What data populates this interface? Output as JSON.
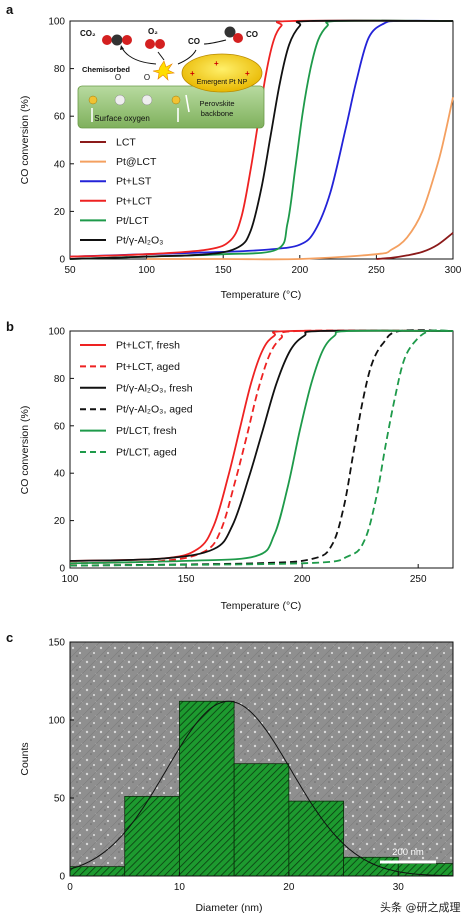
{
  "panels": {
    "a": {
      "letter": "a",
      "legend": [
        {
          "label": "LCT",
          "color": "#8b1a1a"
        },
        {
          "label": "Pt@LCT",
          "color": "#f4a060"
        },
        {
          "label": "Pt+LST",
          "color": "#2323d8"
        },
        {
          "label": "Pt+LCT",
          "color": "#ee2222"
        },
        {
          "label": "Pt/LCT",
          "color": "#1e9a4a"
        },
        {
          "label": "Pt/γ-Al₂O₃",
          "color": "#111111"
        }
      ],
      "inset": {
        "co2": "CO₂",
        "o2": "O₂",
        "co_left": "CO",
        "co_right": "CO",
        "chemisorbed": "Chemisorbed",
        "o_left": "O",
        "o_right": "O",
        "emergent": "Emergent Pt NP",
        "perovskite_line1": "Perovskite",
        "perovskite_line2": "backbone",
        "surface_oxygen": "Surface oxygen"
      }
    },
    "b": {
      "letter": "b",
      "legend": [
        {
          "label": "Pt+LCT, fresh",
          "color": "#ee2222",
          "dashed": false
        },
        {
          "label": "Pt+LCT, aged",
          "color": "#ee2222",
          "dashed": true
        },
        {
          "label": "Pt/γ-Al₂O₃, fresh",
          "color": "#111111",
          "dashed": false
        },
        {
          "label": "Pt/γ-Al₂O₃, aged",
          "color": "#111111",
          "dashed": true
        },
        {
          "label": "Pt/LCT, fresh",
          "color": "#1e9a4a",
          "dashed": false
        },
        {
          "label": "Pt/LCT, aged",
          "color": "#1e9a4a",
          "dashed": true
        }
      ]
    },
    "c": {
      "letter": "c",
      "scalebar_label": "200 nm"
    }
  },
  "watermark": "头条 @研之成理",
  "chart_data": [
    {
      "type": "line",
      "panel": "a",
      "xlabel": "Temperature (°C)",
      "ylabel": "CO conversion (%)",
      "xlim": [
        50,
        300
      ],
      "ylim": [
        0,
        100
      ],
      "xticks": [
        50,
        100,
        150,
        200,
        250,
        300
      ],
      "yticks": [
        0,
        20,
        40,
        60,
        80,
        100
      ],
      "legend_position": "left",
      "series": [
        {
          "name": "LCT",
          "color": "#8b1a1a",
          "x": [
            250,
            260,
            270,
            280,
            290,
            300
          ],
          "y": [
            0,
            0.5,
            1.5,
            3,
            6,
            11
          ]
        },
        {
          "name": "Pt@LCT",
          "color": "#f4a060",
          "x": [
            100,
            150,
            200,
            250,
            260,
            270,
            280,
            290,
            295,
            300
          ],
          "y": [
            0,
            0,
            0,
            2,
            4,
            9,
            20,
            40,
            53,
            68
          ]
        },
        {
          "name": "Pt+LST",
          "color": "#2323d8",
          "x": [
            50,
            100,
            150,
            180,
            200,
            210,
            220,
            230,
            237,
            245,
            255,
            265,
            300
          ],
          "y": [
            1,
            2,
            3,
            4,
            6,
            12,
            28,
            55,
            75,
            93,
            99,
            100,
            100
          ]
        },
        {
          "name": "Pt+LCT",
          "color": "#ee2222",
          "x": [
            50,
            100,
            140,
            155,
            162,
            168,
            173,
            178,
            183,
            188,
            195,
            300
          ],
          "y": [
            1,
            2,
            4,
            8,
            18,
            38,
            58,
            78,
            92,
            98,
            100,
            100
          ]
        },
        {
          "name": "Pt/LCT",
          "color": "#1e9a4a",
          "x": [
            50,
            100,
            150,
            185,
            192,
            197,
            202,
            207,
            212,
            218,
            225,
            300
          ],
          "y": [
            0,
            1,
            2,
            4,
            15,
            38,
            62,
            80,
            92,
            98,
            100,
            100
          ]
        },
        {
          "name": "Pt/γ-Al₂O₃",
          "color": "#111111",
          "x": [
            50,
            100,
            140,
            160,
            168,
            175,
            181,
            187,
            193,
            200,
            207,
            300
          ],
          "y": [
            0,
            1,
            2,
            5,
            12,
            30,
            52,
            74,
            90,
            98,
            100,
            100
          ]
        }
      ]
    },
    {
      "type": "line",
      "panel": "b",
      "xlabel": "Temperature (°C)",
      "ylabel": "CO conversion (%)",
      "xlim": [
        100,
        265
      ],
      "ylim": [
        0,
        100
      ],
      "xticks": [
        100,
        150,
        200,
        250
      ],
      "yticks": [
        0,
        20,
        40,
        60,
        80,
        100
      ],
      "legend_position": "left",
      "series": [
        {
          "name": "Pt+LCT, fresh",
          "color": "#ee2222",
          "dashed": false,
          "x": [
            100,
            140,
            155,
            162,
            168,
            173,
            178,
            183,
            188,
            195,
            265
          ],
          "y": [
            3,
            4,
            8,
            18,
            38,
            58,
            78,
            92,
            98,
            100,
            100
          ]
        },
        {
          "name": "Pt+LCT, aged",
          "color": "#ee2222",
          "dashed": true,
          "x": [
            100,
            140,
            158,
            165,
            171,
            176,
            181,
            186,
            191,
            198,
            265
          ],
          "y": [
            2,
            3,
            7,
            16,
            36,
            55,
            75,
            90,
            97,
            100,
            100
          ]
        },
        {
          "name": "Pt/γ-Al₂O₃, fresh",
          "color": "#111111",
          "dashed": false,
          "x": [
            100,
            140,
            162,
            170,
            177,
            183,
            189,
            195,
            201,
            208,
            265
          ],
          "y": [
            3,
            4,
            8,
            18,
            38,
            58,
            78,
            92,
            98,
            100,
            100
          ]
        },
        {
          "name": "Pt/γ-Al₂O₃, aged",
          "color": "#111111",
          "dashed": true,
          "x": [
            100,
            180,
            205,
            213,
            218,
            222,
            226,
            230,
            235,
            242,
            265
          ],
          "y": [
            1,
            2,
            4,
            10,
            26,
            48,
            70,
            86,
            95,
            100,
            100
          ]
        },
        {
          "name": "Pt/LCT, fresh",
          "color": "#1e9a4a",
          "dashed": false,
          "x": [
            100,
            150,
            180,
            188,
            194,
            199,
            204,
            209,
            214,
            220,
            265
          ],
          "y": [
            2,
            3,
            5,
            14,
            35,
            58,
            78,
            92,
            98,
            100,
            100
          ]
        },
        {
          "name": "Pt/LCT, aged",
          "color": "#1e9a4a",
          "dashed": true,
          "x": [
            100,
            200,
            220,
            227,
            232,
            236,
            240,
            244,
            249,
            255,
            265
          ],
          "y": [
            1,
            2,
            5,
            12,
            30,
            52,
            72,
            88,
            96,
            100,
            100
          ]
        }
      ]
    },
    {
      "type": "bar",
      "panel": "c",
      "xlabel": "Diameter (nm)",
      "ylabel": "Counts",
      "xlim": [
        0,
        35
      ],
      "ylim": [
        0,
        150
      ],
      "xticks": [
        0,
        10,
        20,
        30
      ],
      "yticks": [
        0,
        50,
        100,
        150
      ],
      "bins": [
        [
          0,
          5
        ],
        [
          5,
          10
        ],
        [
          10,
          15
        ],
        [
          15,
          20
        ],
        [
          20,
          25
        ],
        [
          25,
          30
        ],
        [
          30,
          35
        ]
      ],
      "counts": [
        6,
        51,
        112,
        72,
        48,
        12,
        8
      ],
      "fit": {
        "type": "gaussian",
        "amplitude": 112,
        "mean": 14.5,
        "sigma": 5.7
      }
    }
  ]
}
